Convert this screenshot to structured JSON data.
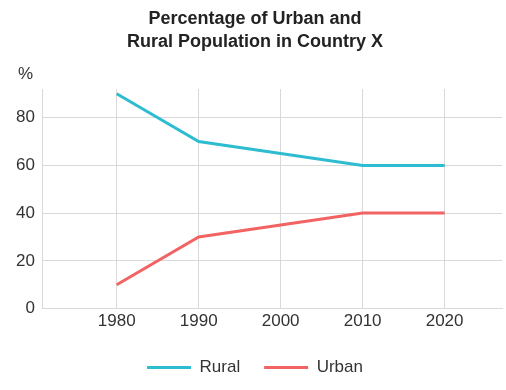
{
  "chart_data": {
    "type": "line",
    "title": "Percentage of Urban and Rural Population in Country X",
    "y_label": "%",
    "x": [
      1980,
      1990,
      2000,
      2010,
      2020
    ],
    "series": [
      {
        "name": "Rural",
        "color": "#2ebcd1",
        "values": [
          90,
          70,
          65,
          60,
          60
        ]
      },
      {
        "name": "Urban",
        "color": "#f26463",
        "values": [
          10,
          30,
          35,
          40,
          40
        ]
      }
    ],
    "xlim": [
      1971,
      2027
    ],
    "xticks": [
      1980,
      1990,
      2000,
      2010,
      2020
    ],
    "ylim": [
      0,
      92
    ],
    "yticks": [
      0,
      20,
      40,
      60,
      80
    ],
    "grid": true,
    "legend": "bottom"
  }
}
